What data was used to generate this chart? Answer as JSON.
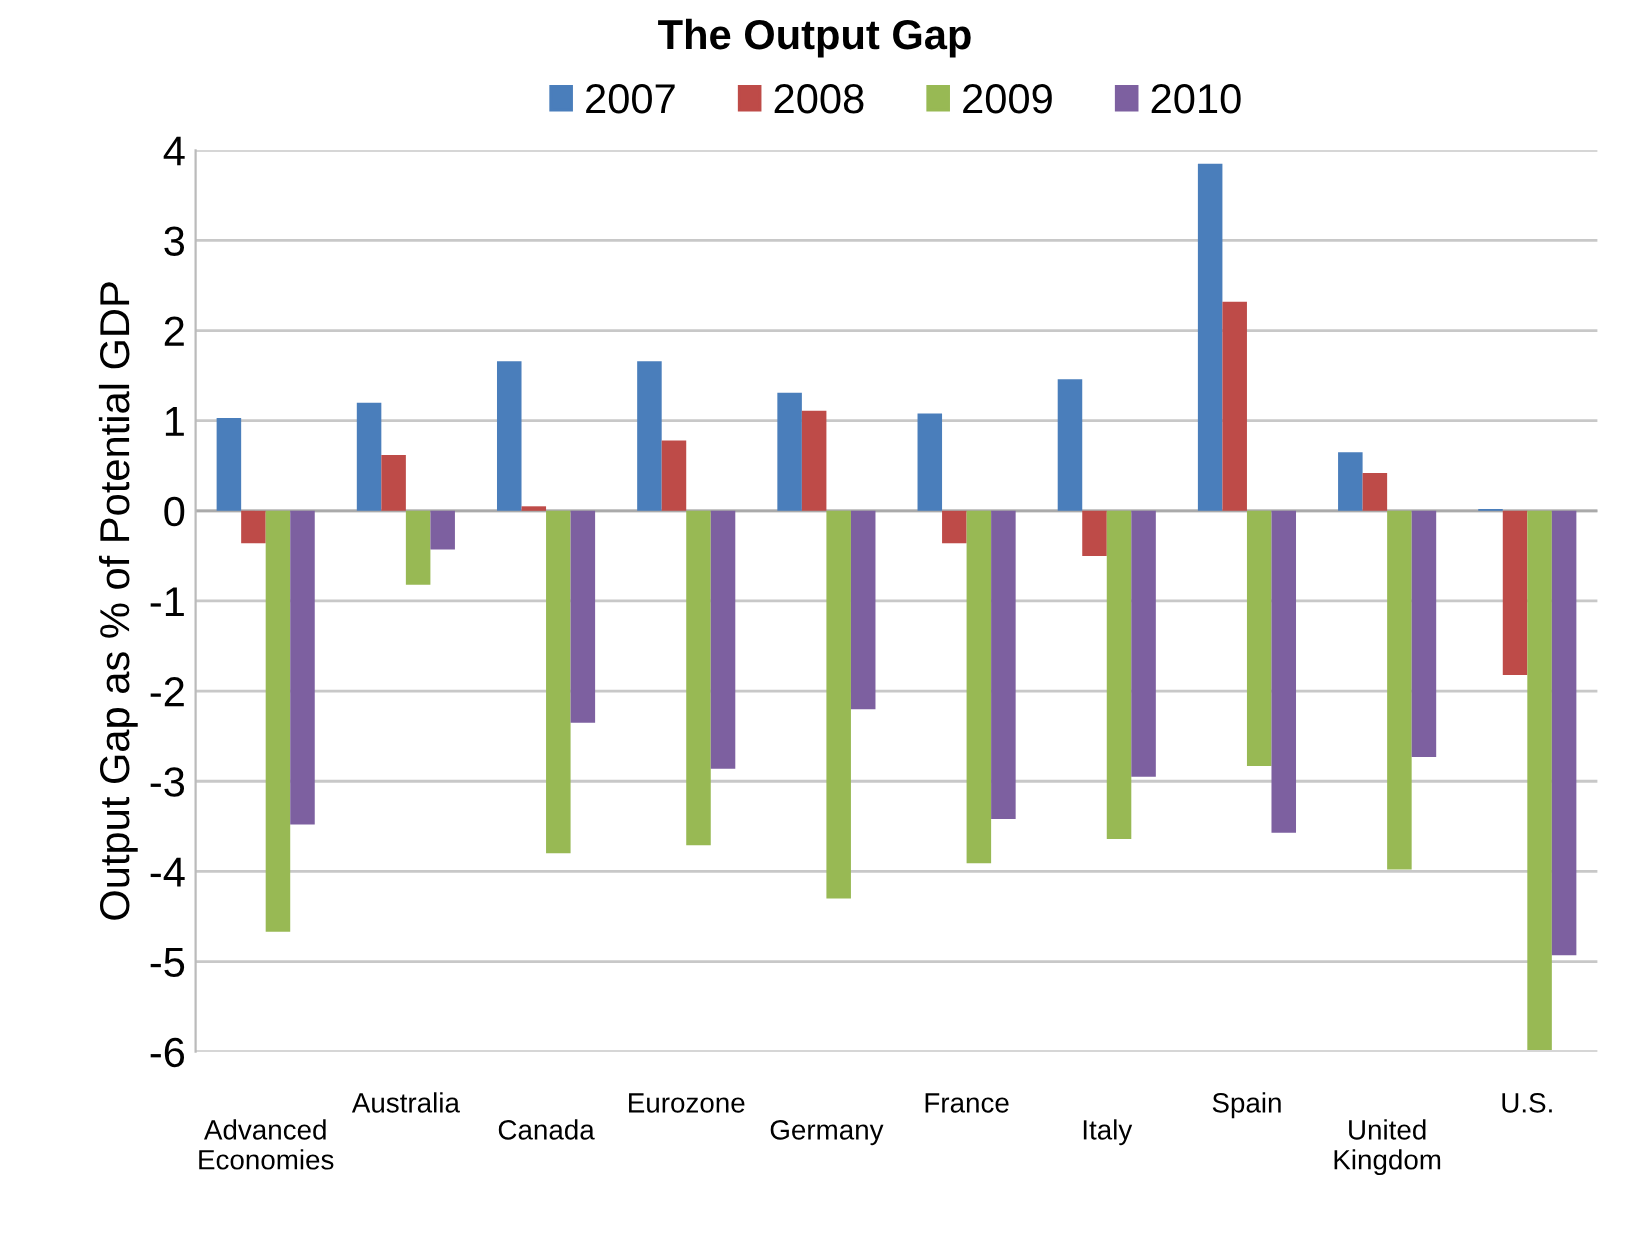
{
  "chart_data": {
    "type": "bar",
    "title": "The Output Gap",
    "ylabel": "Output Gap as % of Potential GDP",
    "categories": [
      "Advanced Economies",
      "Australia",
      "Canada",
      "Eurozone",
      "Germany",
      "France",
      "Italy",
      "Spain",
      "United Kingdom",
      "U.S."
    ],
    "series": [
      {
        "name": "2007",
        "color": "#4a7ebb",
        "values": [
          1.03,
          1.2,
          1.66,
          1.66,
          1.31,
          1.08,
          1.46,
          3.85,
          0.65,
          0.02
        ]
      },
      {
        "name": "2008",
        "color": "#be4b48",
        "values": [
          -0.36,
          0.62,
          0.05,
          0.78,
          1.11,
          -0.36,
          -0.5,
          2.32,
          0.42,
          -1.82
        ]
      },
      {
        "name": "2009",
        "color": "#98b954",
        "values": [
          -4.67,
          -0.82,
          -3.8,
          -3.71,
          -4.3,
          -3.91,
          -3.64,
          -2.83,
          -3.98,
          -5.98
        ]
      },
      {
        "name": "2010",
        "color": "#7d60a0",
        "values": [
          -3.48,
          -0.43,
          -2.35,
          -2.86,
          -2.2,
          -3.42,
          -2.95,
          -3.57,
          -2.73,
          -4.93
        ]
      }
    ],
    "ylim": [
      -6,
      4
    ],
    "yticks": [
      -6,
      -5,
      -4,
      -3,
      -2,
      -1,
      0,
      1,
      2,
      3,
      4
    ],
    "grid": "y",
    "legend": "top"
  }
}
